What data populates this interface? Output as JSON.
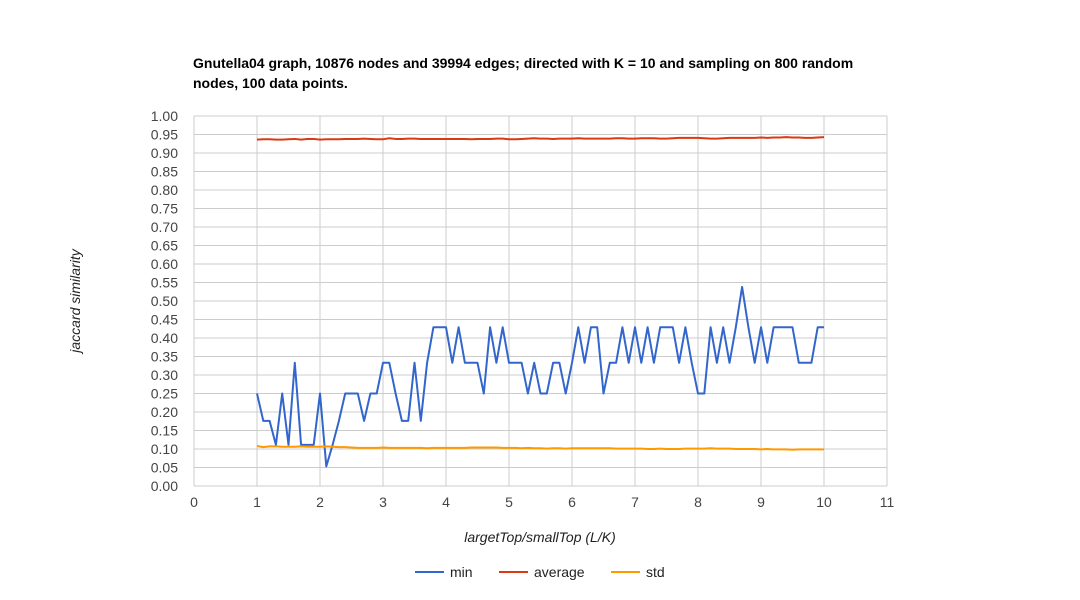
{
  "chart_data": {
    "type": "line",
    "title": "Gnutella04 graph, 10876 nodes and 39994 edges; directed with K = 10 and sampling on 800 random nodes, 100 data points.",
    "xlabel": "largetTop/smallTop (L/K)",
    "ylabel": "jaccard similarity",
    "xlim": [
      0,
      11
    ],
    "ylim": [
      0,
      1
    ],
    "x_ticks": [
      "0",
      "1",
      "2",
      "3",
      "4",
      "5",
      "6",
      "7",
      "8",
      "9",
      "10",
      "11"
    ],
    "y_ticks": [
      "0.00",
      "0.05",
      "0.10",
      "0.15",
      "0.20",
      "0.25",
      "0.30",
      "0.35",
      "0.40",
      "0.45",
      "0.50",
      "0.55",
      "0.60",
      "0.65",
      "0.70",
      "0.75",
      "0.80",
      "0.85",
      "0.90",
      "0.95",
      "1.00"
    ],
    "grid": true,
    "legend_position": "bottom",
    "x": [
      1.0,
      1.1,
      1.2,
      1.3,
      1.4,
      1.5,
      1.6,
      1.7,
      1.8,
      1.9,
      2.0,
      2.1,
      2.2,
      2.3,
      2.4,
      2.5,
      2.6,
      2.7,
      2.8,
      2.9,
      3.0,
      3.1,
      3.2,
      3.3,
      3.4,
      3.5,
      3.6,
      3.7,
      3.8,
      3.9,
      4.0,
      4.1,
      4.2,
      4.3,
      4.4,
      4.5,
      4.6,
      4.7,
      4.8,
      4.9,
      5.0,
      5.1,
      5.2,
      5.3,
      5.4,
      5.5,
      5.6,
      5.7,
      5.8,
      5.9,
      6.0,
      6.1,
      6.2,
      6.3,
      6.4,
      6.5,
      6.6,
      6.7,
      6.8,
      6.9,
      7.0,
      7.1,
      7.2,
      7.3,
      7.4,
      7.5,
      7.6,
      7.7,
      7.8,
      7.9,
      8.0,
      8.1,
      8.2,
      8.3,
      8.4,
      8.5,
      8.6,
      8.7,
      8.8,
      8.9,
      9.0,
      9.1,
      9.2,
      9.3,
      9.4,
      9.5,
      9.6,
      9.7,
      9.8,
      9.9,
      10.0
    ],
    "series": [
      {
        "name": "min",
        "color": "#3366cc",
        "values": [
          0.25,
          0.176,
          0.176,
          0.111,
          0.25,
          0.111,
          0.333,
          0.111,
          0.111,
          0.111,
          0.25,
          0.053,
          0.111,
          0.176,
          0.25,
          0.25,
          0.25,
          0.176,
          0.25,
          0.25,
          0.333,
          0.333,
          0.25,
          0.176,
          0.176,
          0.333,
          0.176,
          0.333,
          0.429,
          0.429,
          0.429,
          0.333,
          0.429,
          0.333,
          0.333,
          0.333,
          0.25,
          0.429,
          0.333,
          0.429,
          0.333,
          0.333,
          0.333,
          0.25,
          0.333,
          0.25,
          0.25,
          0.333,
          0.333,
          0.25,
          0.333,
          0.429,
          0.333,
          0.429,
          0.429,
          0.25,
          0.333,
          0.333,
          0.429,
          0.333,
          0.429,
          0.333,
          0.429,
          0.333,
          0.429,
          0.429,
          0.429,
          0.333,
          0.429,
          0.333,
          0.25,
          0.25,
          0.429,
          0.333,
          0.429,
          0.333,
          0.429,
          0.538,
          0.429,
          0.333,
          0.429,
          0.333,
          0.429,
          0.429,
          0.429,
          0.429,
          0.333,
          0.333,
          0.333,
          0.429,
          0.429
        ]
      },
      {
        "name": "average",
        "color": "#dc3912",
        "values": [
          0.936,
          0.937,
          0.937,
          0.936,
          0.936,
          0.937,
          0.938,
          0.936,
          0.938,
          0.938,
          0.936,
          0.937,
          0.937,
          0.937,
          0.938,
          0.938,
          0.938,
          0.939,
          0.938,
          0.937,
          0.937,
          0.94,
          0.938,
          0.938,
          0.939,
          0.939,
          0.938,
          0.938,
          0.938,
          0.938,
          0.938,
          0.938,
          0.938,
          0.938,
          0.937,
          0.938,
          0.938,
          0.938,
          0.939,
          0.939,
          0.937,
          0.937,
          0.938,
          0.939,
          0.94,
          0.939,
          0.939,
          0.938,
          0.939,
          0.939,
          0.939,
          0.94,
          0.939,
          0.939,
          0.939,
          0.939,
          0.939,
          0.94,
          0.94,
          0.939,
          0.939,
          0.94,
          0.94,
          0.94,
          0.939,
          0.939,
          0.94,
          0.941,
          0.941,
          0.941,
          0.941,
          0.94,
          0.939,
          0.939,
          0.94,
          0.941,
          0.941,
          0.941,
          0.941,
          0.941,
          0.942,
          0.941,
          0.942,
          0.942,
          0.943,
          0.942,
          0.942,
          0.941,
          0.941,
          0.942,
          0.943
        ]
      },
      {
        "name": "std",
        "color": "#ff9900",
        "values": [
          0.108,
          0.105,
          0.107,
          0.107,
          0.106,
          0.106,
          0.106,
          0.107,
          0.106,
          0.106,
          0.106,
          0.107,
          0.106,
          0.105,
          0.105,
          0.104,
          0.103,
          0.103,
          0.103,
          0.103,
          0.104,
          0.103,
          0.103,
          0.103,
          0.103,
          0.103,
          0.103,
          0.102,
          0.103,
          0.103,
          0.103,
          0.103,
          0.103,
          0.103,
          0.104,
          0.104,
          0.104,
          0.104,
          0.104,
          0.103,
          0.103,
          0.103,
          0.102,
          0.103,
          0.102,
          0.102,
          0.101,
          0.102,
          0.102,
          0.101,
          0.102,
          0.102,
          0.102,
          0.102,
          0.102,
          0.102,
          0.102,
          0.101,
          0.101,
          0.101,
          0.101,
          0.101,
          0.1,
          0.1,
          0.101,
          0.1,
          0.1,
          0.1,
          0.101,
          0.101,
          0.101,
          0.101,
          0.102,
          0.101,
          0.101,
          0.101,
          0.1,
          0.1,
          0.1,
          0.1,
          0.099,
          0.1,
          0.099,
          0.099,
          0.099,
          0.098,
          0.099,
          0.099,
          0.099,
          0.099,
          0.099
        ]
      }
    ]
  }
}
